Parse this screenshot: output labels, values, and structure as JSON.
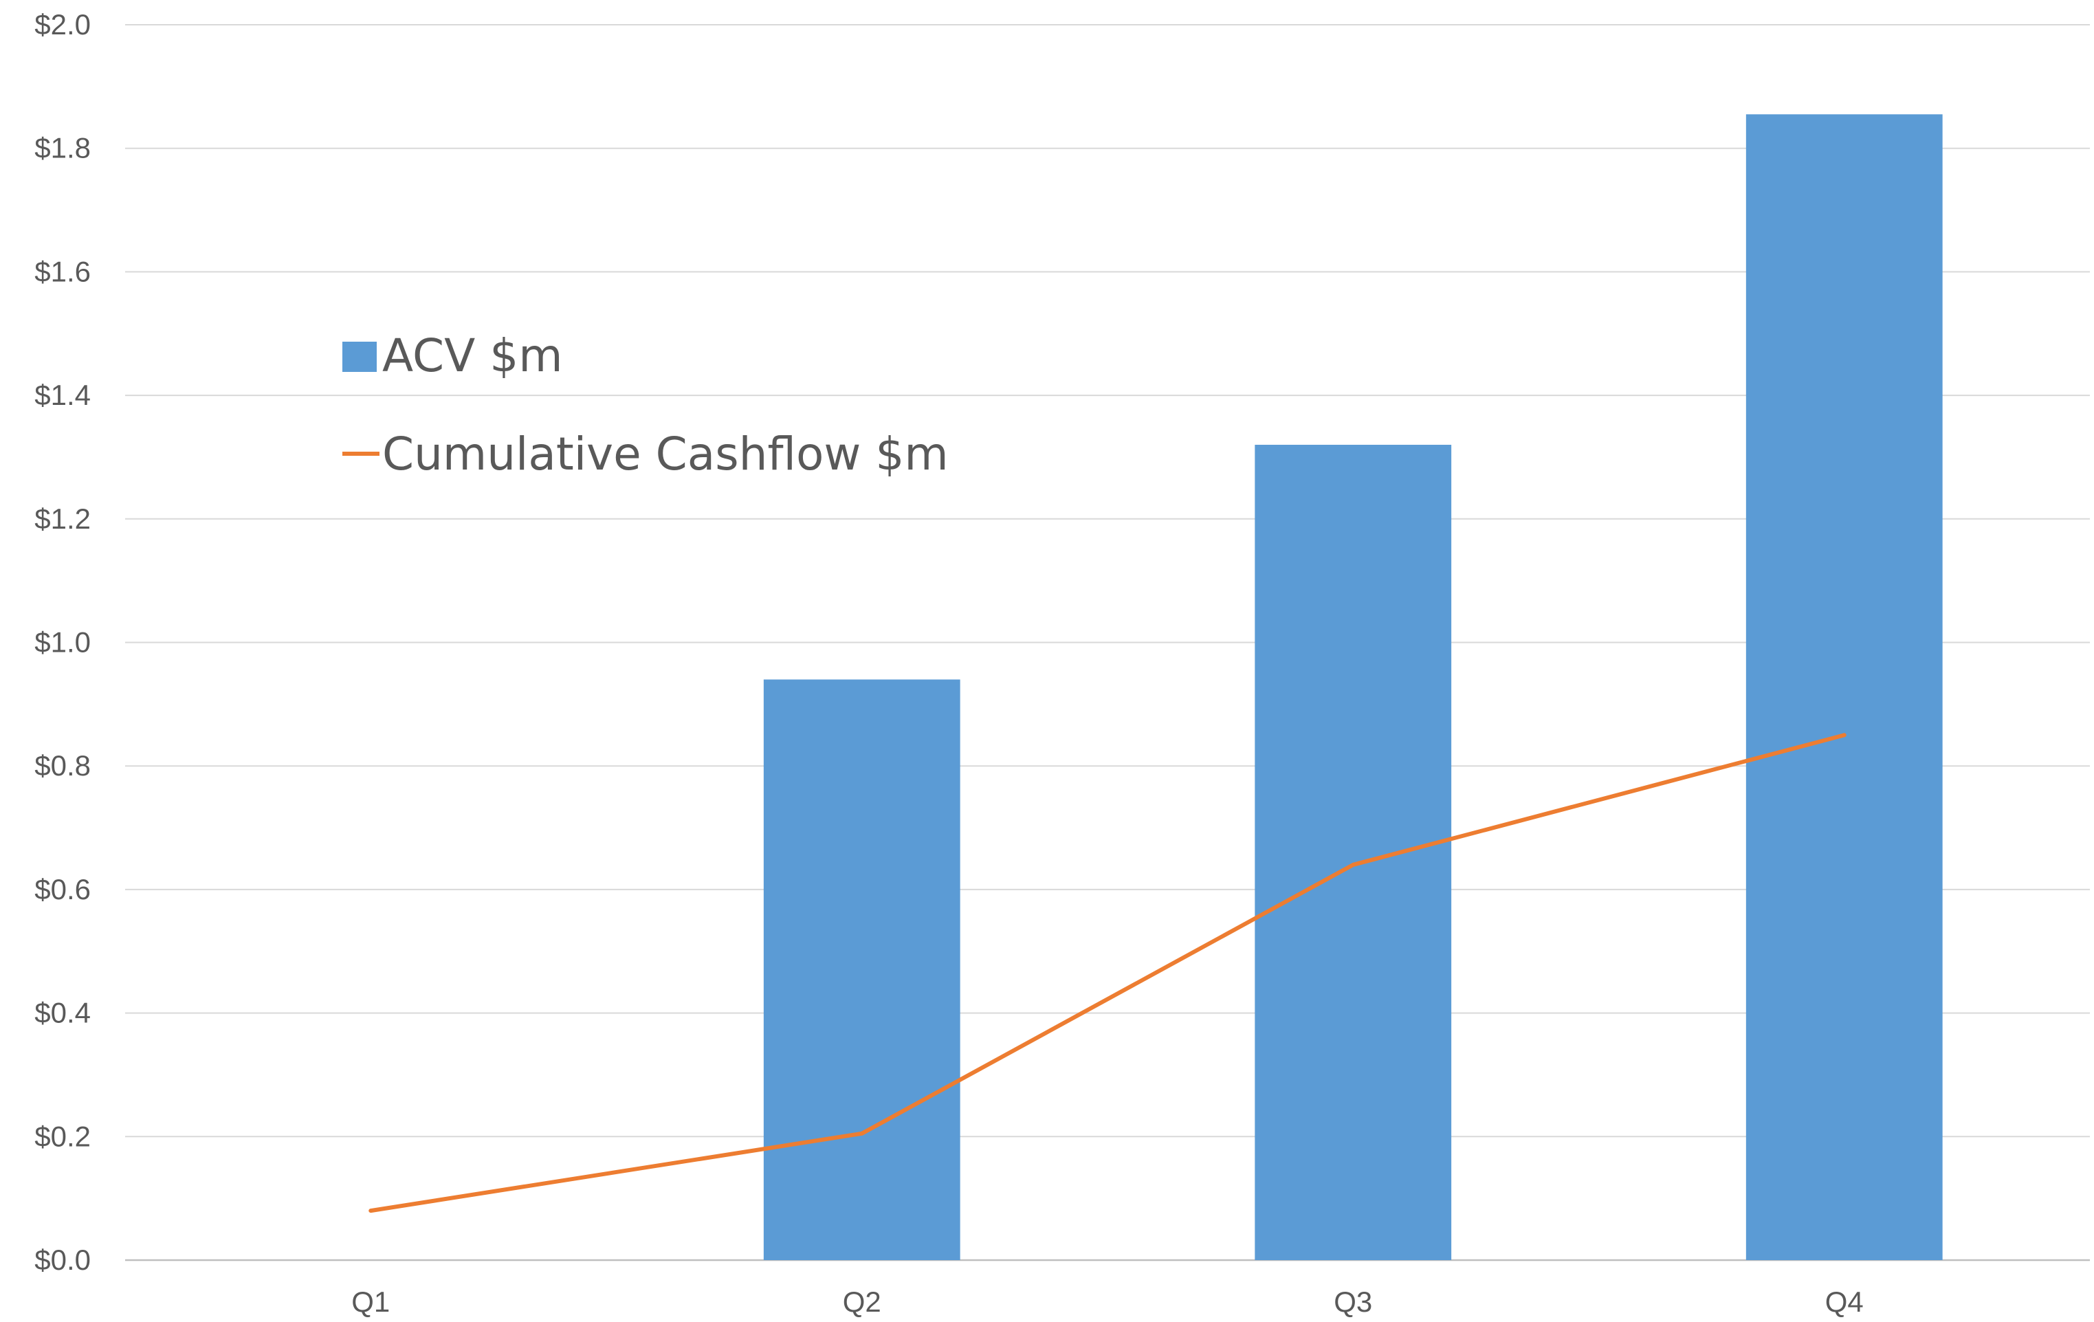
{
  "chart_data": {
    "type": "bar",
    "categories": [
      "Q1",
      "Q2",
      "Q3",
      "Q4"
    ],
    "series": [
      {
        "name": "ACV $m",
        "type": "bar",
        "color": "#5B9BD5",
        "values": [
          0.0,
          0.94,
          1.32,
          1.855
        ]
      },
      {
        "name": "Cumulative Cashflow $m",
        "type": "line",
        "color": "#ED7D31",
        "values": [
          0.08,
          0.205,
          0.64,
          0.85
        ]
      }
    ],
    "yticks": [
      "$0.0",
      "$0.2",
      "$0.4",
      "$0.6",
      "$0.8",
      "$1.0",
      "$1.2",
      "$1.4",
      "$1.6",
      "$1.8",
      "$2.0"
    ],
    "ylim": [
      0,
      2.0
    ],
    "ystep": 0.2,
    "grid": true,
    "legend_position": "upper-left inside plot",
    "gridline_color": "#D9D9D9",
    "axis_line_color": "#BFBFBF",
    "label_color": "#595959"
  }
}
